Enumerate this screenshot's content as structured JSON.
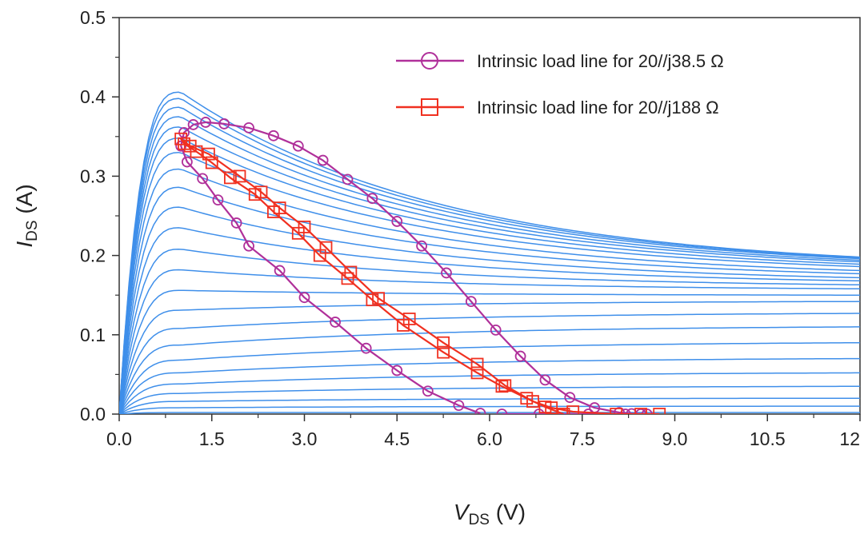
{
  "chart_data": {
    "type": "line",
    "xaxis": {
      "label_main": "V",
      "label_sub": "DS",
      "label_unit": " (V)",
      "range": [
        0,
        12
      ],
      "ticks": [
        "0.0",
        "1.5",
        "3.0",
        "4.5",
        "6.0",
        "7.5",
        "9.0",
        "10.5",
        "12"
      ]
    },
    "yaxis": {
      "label_main": "I",
      "label_sub": "DS",
      "label_unit": " (A)",
      "range": [
        0,
        0.5
      ],
      "ticks": [
        "0.0",
        "0.1",
        "0.2",
        "0.3",
        "0.4",
        "0.5"
      ]
    },
    "grid": false,
    "legend_position": "top-right",
    "iv_curves": {
      "color": "#3f8fea",
      "knee_v": 1.0,
      "end_v": 12,
      "currents_at_knee": [
        0.002,
        0.008,
        0.016,
        0.026,
        0.038,
        0.052,
        0.068,
        0.087,
        0.108,
        0.131,
        0.156,
        0.182,
        0.208,
        0.235,
        0.261,
        0.286,
        0.309,
        0.33,
        0.348,
        0.362,
        0.375,
        0.387,
        0.398,
        0.406
      ],
      "currents_at_end": [
        0.002,
        0.01,
        0.02,
        0.035,
        0.052,
        0.07,
        0.09,
        0.11,
        0.127,
        0.142,
        0.15,
        0.158,
        0.163,
        0.168,
        0.172,
        0.177,
        0.181,
        0.186,
        0.189,
        0.192,
        0.194,
        0.196,
        0.197,
        0.198
      ]
    },
    "series": [
      {
        "name": "Intrinsic load line for 20//j38.5 Ω",
        "color": "#b0309a",
        "marker": "circle",
        "x": [
          5.85,
          5.5,
          5.0,
          4.5,
          4.0,
          3.5,
          3.0,
          2.6,
          2.1,
          1.9,
          1.6,
          1.35,
          1.1,
          1.0,
          1.05,
          1.2,
          1.4,
          1.7,
          2.1,
          2.5,
          2.9,
          3.3,
          3.7,
          4.1,
          4.5,
          4.9,
          5.3,
          5.7,
          6.1,
          6.5,
          6.9,
          7.3,
          7.7,
          8.1,
          8.3,
          8.45,
          8.55,
          8.2,
          7.6,
          6.8,
          6.2
        ],
        "y": [
          0.001,
          0.011,
          0.029,
          0.055,
          0.083,
          0.116,
          0.147,
          0.181,
          0.212,
          0.241,
          0.27,
          0.297,
          0.318,
          0.338,
          0.355,
          0.365,
          0.368,
          0.366,
          0.361,
          0.351,
          0.338,
          0.32,
          0.296,
          0.272,
          0.243,
          0.212,
          0.178,
          0.142,
          0.106,
          0.073,
          0.043,
          0.021,
          0.008,
          0.002,
          0.0005,
          0.0001,
          0.0,
          0.0,
          0.0,
          0.0,
          0.0
        ]
      },
      {
        "name": "Intrinsic load line for 20//j188 Ω",
        "color": "#f03020",
        "marker": "square",
        "x": [
          7.2,
          6.9,
          6.6,
          6.2,
          5.8,
          5.25,
          4.6,
          4.1,
          3.7,
          3.25,
          2.9,
          2.5,
          2.2,
          1.8,
          1.5,
          1.25,
          1.05,
          1.0,
          1.15,
          1.45,
          1.95,
          2.3,
          2.6,
          3.0,
          3.35,
          3.75,
          4.2,
          4.7,
          5.25,
          5.8,
          6.25,
          6.7,
          7.0,
          7.35,
          8.05,
          8.45,
          8.75
        ],
        "y": [
          0.0,
          0.009,
          0.02,
          0.035,
          0.052,
          0.078,
          0.112,
          0.144,
          0.171,
          0.2,
          0.228,
          0.255,
          0.277,
          0.298,
          0.317,
          0.331,
          0.341,
          0.347,
          0.338,
          0.328,
          0.3,
          0.28,
          0.26,
          0.236,
          0.21,
          0.179,
          0.146,
          0.12,
          0.09,
          0.063,
          0.036,
          0.016,
          0.008,
          0.003,
          0.0,
          0.0,
          0.0
        ]
      }
    ]
  }
}
